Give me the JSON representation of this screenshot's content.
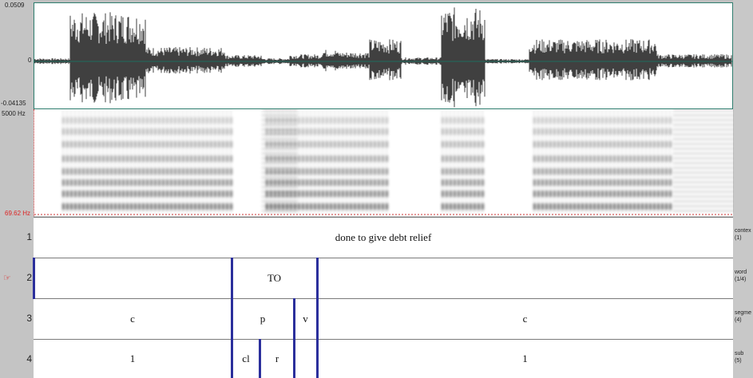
{
  "waveform": {
    "max_label": "0.0509",
    "zero_label": "0",
    "min_label": "-0.04135"
  },
  "spectrogram": {
    "max_label": "5000 Hz",
    "min_label": "69.62 Hz"
  },
  "tiers": [
    {
      "number": "1",
      "name": "contex",
      "count": "(1)",
      "segments": [
        "done to give debt relief"
      ]
    },
    {
      "number": "2",
      "pointer_icon": "hand-pointer-icon",
      "pointer_glyph": "☞",
      "name": "word",
      "count": "(1/4)",
      "segments": [
        "TO"
      ]
    },
    {
      "number": "3",
      "name": "segme",
      "count": "(4)",
      "segments": [
        "c",
        "p",
        "v",
        "c"
      ]
    },
    {
      "number": "4",
      "name": "sub",
      "count": "(5)",
      "segments": [
        "1",
        "cl",
        "r",
        "1"
      ]
    }
  ],
  "colors": {
    "boundary": "#2b2f9c",
    "selected_tier": "#dd2222",
    "waveform_border": "#2e7d6e"
  }
}
